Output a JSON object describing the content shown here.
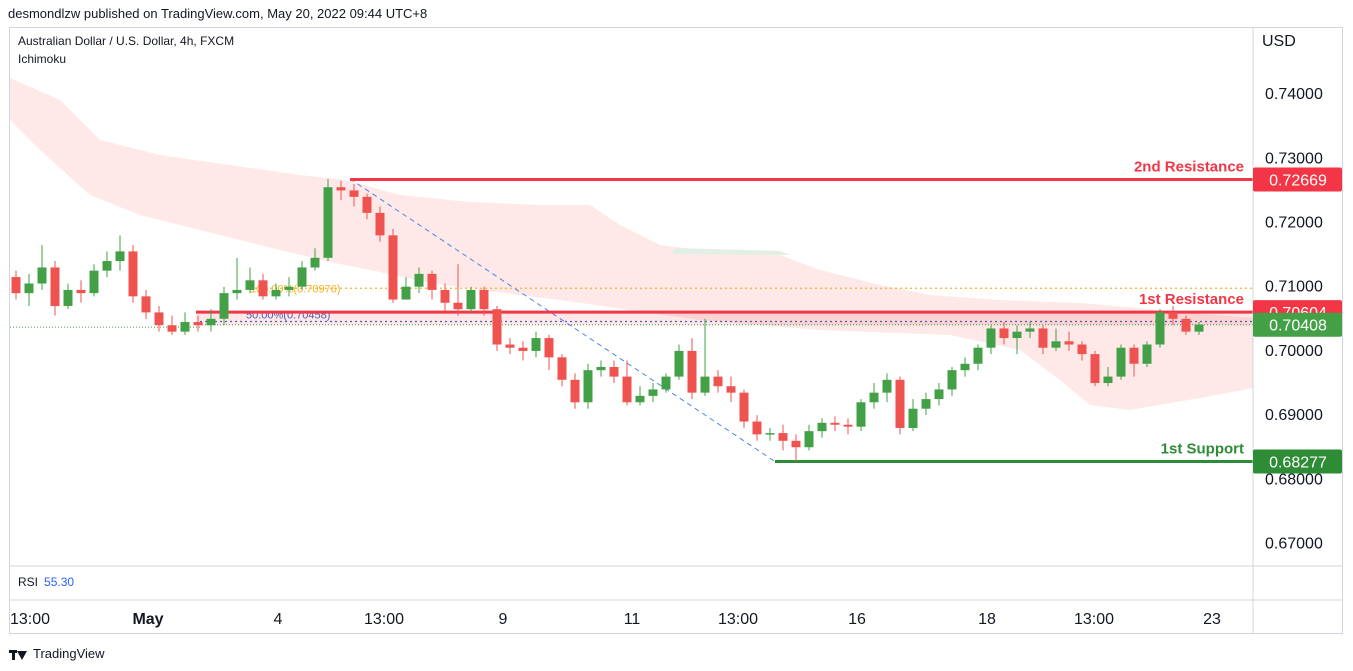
{
  "header": {
    "published": "desmondlzw published on TradingView.com, May 20, 2022 09:44 UTC+8"
  },
  "symbol_title": "Australian Dollar / U.S. Dollar, 4h, FXCM",
  "indicator_name": "Ichimoku",
  "currency_label": "USD",
  "rsi": {
    "label": "RSI",
    "value": "55.30"
  },
  "footer": {
    "brand": "TradingView"
  },
  "colors": {
    "up": "#43a047",
    "down": "#ef5350",
    "resistance": "#f23645",
    "support": "#2e8b36",
    "current_price": "#43a047",
    "cloud": "#fde2e0",
    "cloud_green": "#e1efe4",
    "fib": "#3366cc",
    "fib_upper": "#f5b325",
    "trend": "#4a86e8"
  },
  "chart_data": {
    "type": "candlestick",
    "ylim": [
      0.6665,
      0.745
    ],
    "y_ticks": [
      "0.74000",
      "0.73000",
      "0.72000",
      "0.71000",
      "0.70000",
      "0.69000",
      "0.68000",
      "0.67000"
    ],
    "x_ticks": [
      "13:00",
      "May",
      "4",
      "13:00",
      "9",
      "11",
      "13:00",
      "16",
      "18",
      "13:00",
      "23"
    ],
    "levels": [
      {
        "name": "2nd Resistance",
        "value": "0.72669",
        "price": 0.72669
      },
      {
        "name": "1st Resistance",
        "value": "0.70604",
        "price": 0.70604
      },
      {
        "name": "1st Support",
        "value": "0.68277",
        "price": 0.68277
      }
    ],
    "current_price": {
      "value": "0.70408",
      "price": 0.70408
    },
    "fib_levels": [
      {
        "label": "50.00%(0.70458)",
        "price": 0.70458
      },
      {
        "label": "100.00%(0.70976)",
        "price": 0.70976
      }
    ],
    "candles": [
      [
        0.7115,
        0.709,
        0.7125,
        0.708
      ],
      [
        0.709,
        0.7105,
        0.712,
        0.707
      ],
      [
        0.7105,
        0.713,
        0.7165,
        0.7095
      ],
      [
        0.713,
        0.707,
        0.714,
        0.7055
      ],
      [
        0.707,
        0.7095,
        0.7105,
        0.7065
      ],
      [
        0.7095,
        0.709,
        0.711,
        0.7075
      ],
      [
        0.709,
        0.7125,
        0.7135,
        0.7085
      ],
      [
        0.7125,
        0.714,
        0.7155,
        0.7115
      ],
      [
        0.714,
        0.7155,
        0.718,
        0.7125
      ],
      [
        0.7155,
        0.7085,
        0.7165,
        0.7075
      ],
      [
        0.7085,
        0.706,
        0.7095,
        0.705
      ],
      [
        0.706,
        0.704,
        0.707,
        0.703
      ],
      [
        0.704,
        0.703,
        0.7055,
        0.7025
      ],
      [
        0.703,
        0.7045,
        0.706,
        0.7025
      ],
      [
        0.7045,
        0.704,
        0.7055,
        0.703
      ],
      [
        0.704,
        0.705,
        0.7065,
        0.703
      ],
      [
        0.705,
        0.709,
        0.71,
        0.704
      ],
      [
        0.709,
        0.7095,
        0.7145,
        0.708
      ],
      [
        0.7095,
        0.711,
        0.713,
        0.709
      ],
      [
        0.711,
        0.7085,
        0.712,
        0.708
      ],
      [
        0.7085,
        0.7095,
        0.7105,
        0.708
      ],
      [
        0.7095,
        0.71,
        0.7115,
        0.7085
      ],
      [
        0.71,
        0.713,
        0.714,
        0.7095
      ],
      [
        0.713,
        0.7145,
        0.716,
        0.7125
      ],
      [
        0.7145,
        0.7255,
        0.7268,
        0.714
      ],
      [
        0.7255,
        0.725,
        0.7265,
        0.7235
      ],
      [
        0.725,
        0.724,
        0.726,
        0.7225
      ],
      [
        0.724,
        0.7215,
        0.7245,
        0.7205
      ],
      [
        0.7215,
        0.718,
        0.7225,
        0.717
      ],
      [
        0.718,
        0.708,
        0.719,
        0.7075
      ],
      [
        0.708,
        0.71,
        0.7115,
        0.708
      ],
      [
        0.71,
        0.712,
        0.713,
        0.709
      ],
      [
        0.712,
        0.7095,
        0.7125,
        0.708
      ],
      [
        0.7095,
        0.7075,
        0.7105,
        0.706
      ],
      [
        0.7075,
        0.7065,
        0.7135,
        0.7055
      ],
      [
        0.7065,
        0.7095,
        0.71,
        0.706
      ],
      [
        0.7095,
        0.7065,
        0.71,
        0.7055
      ],
      [
        0.7065,
        0.701,
        0.707,
        0.7
      ],
      [
        0.701,
        0.7005,
        0.702,
        0.6995
      ],
      [
        0.7005,
        0.7,
        0.7015,
        0.6985
      ],
      [
        0.7,
        0.702,
        0.703,
        0.699
      ],
      [
        0.702,
        0.699,
        0.7025,
        0.697
      ],
      [
        0.699,
        0.6955,
        0.6995,
        0.6945
      ],
      [
        0.6955,
        0.692,
        0.6965,
        0.691
      ],
      [
        0.692,
        0.697,
        0.698,
        0.691
      ],
      [
        0.697,
        0.6975,
        0.6985,
        0.696
      ],
      [
        0.6975,
        0.696,
        0.6985,
        0.695
      ],
      [
        0.696,
        0.692,
        0.6985,
        0.6915
      ],
      [
        0.692,
        0.693,
        0.6945,
        0.6915
      ],
      [
        0.693,
        0.694,
        0.695,
        0.692
      ],
      [
        0.694,
        0.696,
        0.6965,
        0.6935
      ],
      [
        0.696,
        0.7,
        0.701,
        0.6955
      ],
      [
        0.7,
        0.6935,
        0.702,
        0.6925
      ],
      [
        0.6935,
        0.696,
        0.705,
        0.693
      ],
      [
        0.696,
        0.6945,
        0.697,
        0.6935
      ],
      [
        0.6945,
        0.6935,
        0.696,
        0.692
      ],
      [
        0.6935,
        0.689,
        0.694,
        0.688
      ],
      [
        0.689,
        0.687,
        0.69,
        0.686
      ],
      [
        0.687,
        0.6872,
        0.688,
        0.686
      ],
      [
        0.6872,
        0.686,
        0.6885,
        0.6845
      ],
      [
        0.686,
        0.685,
        0.687,
        0.6828
      ],
      [
        0.685,
        0.6875,
        0.6885,
        0.6845
      ],
      [
        0.6875,
        0.6888,
        0.6895,
        0.6865
      ],
      [
        0.6888,
        0.6885,
        0.6898,
        0.6875
      ],
      [
        0.6885,
        0.6882,
        0.6895,
        0.687
      ],
      [
        0.6882,
        0.692,
        0.6925,
        0.6875
      ],
      [
        0.692,
        0.6935,
        0.695,
        0.691
      ],
      [
        0.6935,
        0.6955,
        0.6965,
        0.692
      ],
      [
        0.6955,
        0.688,
        0.696,
        0.687
      ],
      [
        0.688,
        0.691,
        0.6925,
        0.6875
      ],
      [
        0.691,
        0.6925,
        0.6935,
        0.69
      ],
      [
        0.6925,
        0.694,
        0.695,
        0.6915
      ],
      [
        0.694,
        0.697,
        0.6975,
        0.693
      ],
      [
        0.697,
        0.698,
        0.699,
        0.696
      ],
      [
        0.698,
        0.7005,
        0.701,
        0.697
      ],
      [
        0.7005,
        0.7035,
        0.704,
        0.6995
      ],
      [
        0.7035,
        0.702,
        0.7045,
        0.701
      ],
      [
        0.702,
        0.703,
        0.704,
        0.6995
      ],
      [
        0.703,
        0.7035,
        0.7045,
        0.702
      ],
      [
        0.7035,
        0.7005,
        0.704,
        0.6995
      ],
      [
        0.7005,
        0.7015,
        0.7035,
        0.7
      ],
      [
        0.7015,
        0.701,
        0.703,
        0.7
      ],
      [
        0.701,
        0.6995,
        0.7015,
        0.6985
      ],
      [
        0.6995,
        0.695,
        0.7,
        0.6945
      ],
      [
        0.695,
        0.696,
        0.6975,
        0.6945
      ],
      [
        0.696,
        0.7005,
        0.701,
        0.6955
      ],
      [
        0.7005,
        0.698,
        0.701,
        0.696
      ],
      [
        0.698,
        0.701,
        0.7015,
        0.6975
      ],
      [
        0.701,
        0.706,
        0.7065,
        0.7005
      ],
      [
        0.706,
        0.705,
        0.707,
        0.704
      ],
      [
        0.705,
        0.703,
        0.7055,
        0.7025
      ],
      [
        0.703,
        0.7041,
        0.7045,
        0.7025
      ]
    ]
  }
}
